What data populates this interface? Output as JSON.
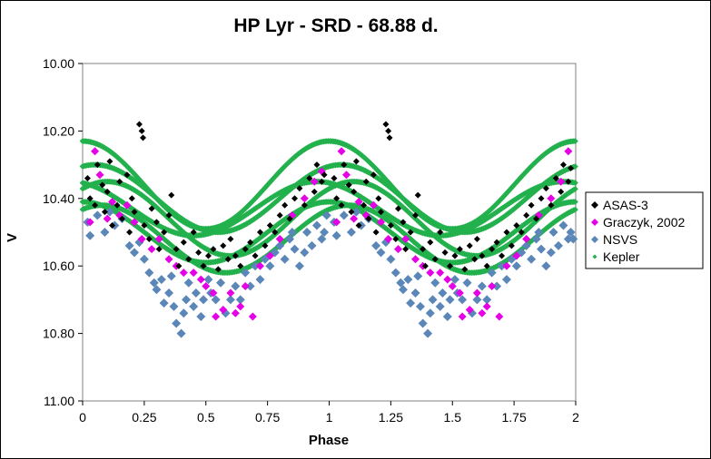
{
  "chart_data": {
    "type": "scatter",
    "title": "HP Lyr - SRD - 68.88 d.",
    "xlabel": "Phase",
    "ylabel": "V",
    "xlim": [
      0,
      2
    ],
    "ylim": [
      10.0,
      11.0
    ],
    "y_inverted": true,
    "xticks": [
      "0",
      "0.25",
      "0.5",
      "0.75",
      "1",
      "1.25",
      "1.5",
      "1.75",
      "2"
    ],
    "yticks": [
      "10.00",
      "10.20",
      "10.40",
      "10.60",
      "10.80",
      "11.00"
    ],
    "grid": false,
    "legend_position": "right",
    "series": [
      {
        "name": "ASAS-3",
        "marker": "diamond",
        "color": "#000000",
        "points": [
          [
            0.02,
            10.34
          ],
          [
            0.03,
            10.4
          ],
          [
            0.05,
            10.42
          ],
          [
            0.06,
            10.3
          ],
          [
            0.08,
            10.36
          ],
          [
            0.09,
            10.44
          ],
          [
            0.1,
            10.38
          ],
          [
            0.11,
            10.29
          ],
          [
            0.12,
            10.48
          ],
          [
            0.14,
            10.42
          ],
          [
            0.15,
            10.35
          ],
          [
            0.16,
            10.46
          ],
          [
            0.18,
            10.33
          ],
          [
            0.19,
            10.5
          ],
          [
            0.2,
            10.4
          ],
          [
            0.21,
            10.44
          ],
          [
            0.23,
            10.18
          ],
          [
            0.24,
            10.2
          ],
          [
            0.245,
            10.22
          ],
          [
            0.25,
            10.48
          ],
          [
            0.27,
            10.52
          ],
          [
            0.28,
            10.43
          ],
          [
            0.3,
            10.47
          ],
          [
            0.31,
            10.55
          ],
          [
            0.33,
            10.5
          ],
          [
            0.35,
            10.45
          ],
          [
            0.36,
            10.39
          ],
          [
            0.38,
            10.55
          ],
          [
            0.39,
            10.6
          ],
          [
            0.41,
            10.53
          ],
          [
            0.43,
            10.58
          ],
          [
            0.45,
            10.5
          ],
          [
            0.47,
            10.56
          ],
          [
            0.49,
            10.6
          ],
          [
            0.51,
            10.57
          ],
          [
            0.53,
            10.55
          ],
          [
            0.55,
            10.61
          ],
          [
            0.57,
            10.54
          ],
          [
            0.59,
            10.58
          ],
          [
            0.6,
            10.52
          ],
          [
            0.62,
            10.57
          ],
          [
            0.64,
            10.6
          ],
          [
            0.66,
            10.55
          ],
          [
            0.68,
            10.53
          ],
          [
            0.7,
            10.57
          ],
          [
            0.72,
            10.5
          ],
          [
            0.74,
            10.54
          ],
          [
            0.76,
            10.48
          ],
          [
            0.78,
            10.5
          ],
          [
            0.8,
            10.45
          ],
          [
            0.82,
            10.42
          ],
          [
            0.84,
            10.46
          ],
          [
            0.86,
            10.4
          ],
          [
            0.88,
            10.37
          ],
          [
            0.9,
            10.42
          ],
          [
            0.92,
            10.34
          ],
          [
            0.94,
            10.38
          ],
          [
            0.95,
            10.3
          ],
          [
            0.97,
            10.35
          ],
          [
            0.98,
            10.33
          ],
          [
            1.02,
            10.34
          ],
          [
            1.03,
            10.4
          ],
          [
            1.05,
            10.42
          ],
          [
            1.06,
            10.3
          ],
          [
            1.08,
            10.36
          ],
          [
            1.09,
            10.44
          ],
          [
            1.1,
            10.38
          ],
          [
            1.11,
            10.29
          ],
          [
            1.12,
            10.48
          ],
          [
            1.14,
            10.42
          ],
          [
            1.15,
            10.35
          ],
          [
            1.16,
            10.46
          ],
          [
            1.18,
            10.33
          ],
          [
            1.19,
            10.5
          ],
          [
            1.2,
            10.4
          ],
          [
            1.21,
            10.44
          ],
          [
            1.23,
            10.18
          ],
          [
            1.24,
            10.2
          ],
          [
            1.245,
            10.22
          ],
          [
            1.25,
            10.48
          ],
          [
            1.27,
            10.52
          ],
          [
            1.28,
            10.43
          ],
          [
            1.3,
            10.47
          ],
          [
            1.31,
            10.55
          ],
          [
            1.33,
            10.5
          ],
          [
            1.35,
            10.45
          ],
          [
            1.36,
            10.39
          ],
          [
            1.38,
            10.55
          ],
          [
            1.39,
            10.6
          ],
          [
            1.41,
            10.53
          ],
          [
            1.43,
            10.58
          ],
          [
            1.45,
            10.5
          ],
          [
            1.47,
            10.56
          ],
          [
            1.49,
            10.6
          ],
          [
            1.51,
            10.57
          ],
          [
            1.53,
            10.55
          ],
          [
            1.55,
            10.61
          ],
          [
            1.57,
            10.54
          ],
          [
            1.59,
            10.58
          ],
          [
            1.6,
            10.52
          ],
          [
            1.62,
            10.57
          ],
          [
            1.64,
            10.6
          ],
          [
            1.66,
            10.55
          ],
          [
            1.68,
            10.53
          ],
          [
            1.7,
            10.57
          ],
          [
            1.72,
            10.5
          ],
          [
            1.74,
            10.54
          ],
          [
            1.76,
            10.48
          ],
          [
            1.78,
            10.5
          ],
          [
            1.8,
            10.45
          ],
          [
            1.82,
            10.42
          ],
          [
            1.84,
            10.46
          ],
          [
            1.86,
            10.4
          ],
          [
            1.88,
            10.37
          ],
          [
            1.9,
            10.42
          ],
          [
            1.92,
            10.34
          ],
          [
            1.94,
            10.38
          ],
          [
            1.95,
            10.3
          ],
          [
            1.97,
            10.35
          ],
          [
            1.98,
            10.31
          ]
        ]
      },
      {
        "name": "Graczyk, 2002",
        "marker": "diamond",
        "color": "#e600e6",
        "points": [
          [
            0.03,
            10.47
          ],
          [
            0.05,
            10.26
          ],
          [
            0.07,
            10.33
          ],
          [
            0.1,
            10.46
          ],
          [
            0.12,
            10.41
          ],
          [
            0.15,
            10.45
          ],
          [
            0.18,
            10.42
          ],
          [
            0.21,
            10.47
          ],
          [
            0.24,
            10.52
          ],
          [
            0.28,
            10.55
          ],
          [
            0.31,
            10.52
          ],
          [
            0.35,
            10.58
          ],
          [
            0.38,
            10.6
          ],
          [
            0.41,
            10.62
          ],
          [
            0.45,
            10.62
          ],
          [
            0.48,
            10.64
          ],
          [
            0.5,
            10.66
          ],
          [
            0.53,
            10.68
          ],
          [
            0.54,
            10.75
          ],
          [
            0.57,
            10.73
          ],
          [
            0.6,
            10.68
          ],
          [
            0.62,
            10.74
          ],
          [
            0.64,
            10.72
          ],
          [
            0.66,
            10.66
          ],
          [
            0.69,
            10.75
          ],
          [
            0.72,
            10.6
          ],
          [
            0.76,
            10.57
          ],
          [
            0.8,
            10.52
          ],
          [
            0.85,
            10.45
          ],
          [
            0.9,
            10.4
          ],
          [
            0.94,
            10.35
          ],
          [
            0.97,
            10.32
          ],
          [
            1.03,
            10.47
          ],
          [
            1.05,
            10.26
          ],
          [
            1.07,
            10.33
          ],
          [
            1.1,
            10.46
          ],
          [
            1.12,
            10.41
          ],
          [
            1.15,
            10.45
          ],
          [
            1.18,
            10.42
          ],
          [
            1.21,
            10.47
          ],
          [
            1.24,
            10.52
          ],
          [
            1.28,
            10.55
          ],
          [
            1.31,
            10.52
          ],
          [
            1.35,
            10.58
          ],
          [
            1.38,
            10.6
          ],
          [
            1.41,
            10.62
          ],
          [
            1.45,
            10.62
          ],
          [
            1.48,
            10.64
          ],
          [
            1.5,
            10.66
          ],
          [
            1.53,
            10.68
          ],
          [
            1.54,
            10.75
          ],
          [
            1.57,
            10.73
          ],
          [
            1.6,
            10.68
          ],
          [
            1.62,
            10.74
          ],
          [
            1.64,
            10.72
          ],
          [
            1.66,
            10.66
          ],
          [
            1.69,
            10.75
          ],
          [
            1.72,
            10.6
          ],
          [
            1.76,
            10.57
          ],
          [
            1.8,
            10.52
          ],
          [
            1.85,
            10.45
          ],
          [
            1.9,
            10.4
          ],
          [
            1.94,
            10.35
          ],
          [
            1.97,
            10.26
          ]
        ]
      },
      {
        "name": "NSVS",
        "marker": "diamond",
        "color": "#5b86b8",
        "points": [
          [
            0.02,
            10.47
          ],
          [
            0.03,
            10.51
          ],
          [
            0.06,
            10.45
          ],
          [
            0.09,
            10.5
          ],
          [
            0.11,
            10.44
          ],
          [
            0.13,
            10.48
          ],
          [
            0.16,
            10.46
          ],
          [
            0.19,
            10.54
          ],
          [
            0.21,
            10.56
          ],
          [
            0.23,
            10.53
          ],
          [
            0.25,
            10.58
          ],
          [
            0.27,
            10.62
          ],
          [
            0.29,
            10.65
          ],
          [
            0.3,
            10.67
          ],
          [
            0.32,
            10.64
          ],
          [
            0.33,
            10.71
          ],
          [
            0.35,
            10.68
          ],
          [
            0.36,
            10.63
          ],
          [
            0.37,
            10.72
          ],
          [
            0.38,
            10.77
          ],
          [
            0.4,
            10.8
          ],
          [
            0.41,
            10.74
          ],
          [
            0.42,
            10.7
          ],
          [
            0.43,
            10.65
          ],
          [
            0.45,
            10.72
          ],
          [
            0.46,
            10.68
          ],
          [
            0.48,
            10.75
          ],
          [
            0.49,
            10.7
          ],
          [
            0.51,
            10.64
          ],
          [
            0.52,
            10.68
          ],
          [
            0.54,
            10.7
          ],
          [
            0.56,
            10.65
          ],
          [
            0.58,
            10.74
          ],
          [
            0.6,
            10.7
          ],
          [
            0.62,
            10.66
          ],
          [
            0.64,
            10.7
          ],
          [
            0.66,
            10.62
          ],
          [
            0.68,
            10.66
          ],
          [
            0.7,
            10.6
          ],
          [
            0.72,
            10.64
          ],
          [
            0.74,
            10.58
          ],
          [
            0.76,
            10.6
          ],
          [
            0.78,
            10.56
          ],
          [
            0.8,
            10.54
          ],
          [
            0.82,
            10.58
          ],
          [
            0.84,
            10.52
          ],
          [
            0.85,
            10.5
          ],
          [
            0.86,
            10.55
          ],
          [
            0.88,
            10.6
          ],
          [
            0.9,
            10.56
          ],
          [
            0.91,
            10.5
          ],
          [
            0.93,
            10.54
          ],
          [
            0.95,
            10.48
          ],
          [
            0.97,
            10.52
          ],
          [
            0.98,
            10.5
          ],
          [
            0.99,
            10.45
          ],
          [
            1.02,
            10.47
          ],
          [
            1.03,
            10.51
          ],
          [
            1.06,
            10.45
          ],
          [
            1.09,
            10.5
          ],
          [
            1.11,
            10.44
          ],
          [
            1.13,
            10.48
          ],
          [
            1.16,
            10.46
          ],
          [
            1.19,
            10.54
          ],
          [
            1.21,
            10.56
          ],
          [
            1.23,
            10.53
          ],
          [
            1.25,
            10.58
          ],
          [
            1.27,
            10.62
          ],
          [
            1.29,
            10.65
          ],
          [
            1.3,
            10.67
          ],
          [
            1.32,
            10.64
          ],
          [
            1.33,
            10.71
          ],
          [
            1.35,
            10.68
          ],
          [
            1.36,
            10.63
          ],
          [
            1.37,
            10.72
          ],
          [
            1.38,
            10.77
          ],
          [
            1.4,
            10.8
          ],
          [
            1.41,
            10.74
          ],
          [
            1.42,
            10.7
          ],
          [
            1.43,
            10.65
          ],
          [
            1.45,
            10.72
          ],
          [
            1.46,
            10.68
          ],
          [
            1.48,
            10.75
          ],
          [
            1.49,
            10.7
          ],
          [
            1.51,
            10.64
          ],
          [
            1.52,
            10.68
          ],
          [
            1.54,
            10.7
          ],
          [
            1.56,
            10.65
          ],
          [
            1.58,
            10.74
          ],
          [
            1.6,
            10.7
          ],
          [
            1.62,
            10.66
          ],
          [
            1.64,
            10.7
          ],
          [
            1.66,
            10.62
          ],
          [
            1.68,
            10.66
          ],
          [
            1.7,
            10.6
          ],
          [
            1.72,
            10.64
          ],
          [
            1.74,
            10.58
          ],
          [
            1.76,
            10.6
          ],
          [
            1.78,
            10.56
          ],
          [
            1.8,
            10.54
          ],
          [
            1.82,
            10.58
          ],
          [
            1.84,
            10.52
          ],
          [
            1.85,
            10.5
          ],
          [
            1.86,
            10.55
          ],
          [
            1.88,
            10.6
          ],
          [
            1.9,
            10.56
          ],
          [
            1.91,
            10.5
          ],
          [
            1.93,
            10.54
          ],
          [
            1.95,
            10.48
          ],
          [
            1.97,
            10.52
          ],
          [
            1.98,
            10.5
          ],
          [
            1.99,
            10.52
          ]
        ]
      },
      {
        "name": "Kepler",
        "marker": "dot",
        "color": "#22b14c",
        "tracks": [
          {
            "mean": 10.36,
            "amp": 0.13,
            "phase0": 0.0
          },
          {
            "mean": 10.4,
            "amp": 0.1,
            "phase0": 0.05
          },
          {
            "mean": 10.46,
            "amp": 0.11,
            "phase0": 0.1
          },
          {
            "mean": 10.43,
            "amp": 0.08,
            "phase0": -0.05
          },
          {
            "mean": 10.5,
            "amp": 0.09,
            "phase0": 0.0
          },
          {
            "mean": 10.52,
            "amp": 0.1,
            "phase0": 0.08
          }
        ]
      }
    ]
  }
}
